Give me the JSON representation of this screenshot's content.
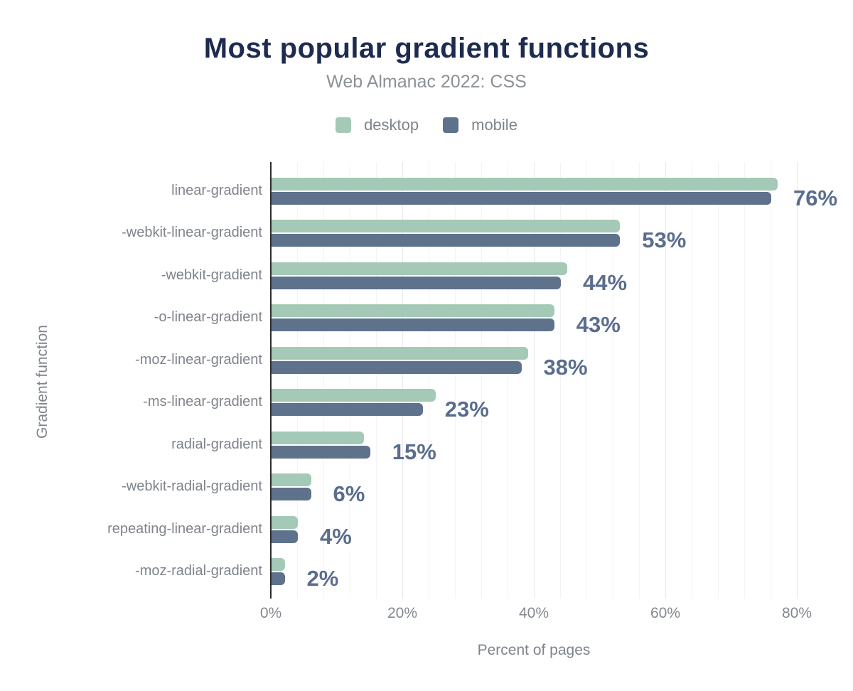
{
  "header": {
    "title": "Most popular gradient functions",
    "subtitle": "Web Almanac 2022: CSS"
  },
  "legend": {
    "items": [
      {
        "label": "desktop",
        "color": "#a5c9b7"
      },
      {
        "label": "mobile",
        "color": "#5f728c"
      }
    ]
  },
  "chart_data": {
    "type": "bar",
    "orientation": "horizontal",
    "title": "Most popular gradient functions",
    "subtitle": "Web Almanac 2022: CSS",
    "xlabel": "Percent of pages",
    "ylabel": "Gradient function",
    "xlim": [
      0,
      80
    ],
    "x_ticks": [
      {
        "value": 0,
        "label": "0%"
      },
      {
        "value": 20,
        "label": "20%"
      },
      {
        "value": 40,
        "label": "40%"
      },
      {
        "value": 60,
        "label": "60%"
      },
      {
        "value": 80,
        "label": "80%"
      }
    ],
    "grid": {
      "vertical": true,
      "minor_step_pct": 4,
      "major_step_pct": 20
    },
    "legend_position": "top",
    "categories": [
      "linear-gradient",
      "-webkit-linear-gradient",
      "-webkit-gradient",
      "-o-linear-gradient",
      "-moz-linear-gradient",
      "-ms-linear-gradient",
      "radial-gradient",
      "-webkit-radial-gradient",
      "repeating-linear-gradient",
      "-moz-radial-gradient"
    ],
    "series": [
      {
        "name": "desktop",
        "color": "#a5c9b7",
        "values": [
          77,
          53,
          45,
          43,
          39,
          25,
          14,
          6,
          4,
          2
        ]
      },
      {
        "name": "mobile",
        "color": "#5f728c",
        "values": [
          76,
          53,
          44,
          43,
          38,
          23,
          15,
          6,
          4,
          2
        ]
      }
    ],
    "annotations": {
      "attached_to_series": "mobile",
      "labels": [
        "76%",
        "53%",
        "44%",
        "43%",
        "38%",
        "23%",
        "15%",
        "6%",
        "4%",
        "2%"
      ],
      "color": "#5a6d8e"
    }
  },
  "colors": {
    "title": "#1e2b50",
    "subtitle": "#8c9196",
    "axis_text": "#7f848c",
    "axis_line": "#2d2d2d",
    "grid_minor": "#f3f3f6",
    "grid_major": "#e7e7ed",
    "value_label": "#5a6d8e",
    "background": "#ffffff"
  }
}
